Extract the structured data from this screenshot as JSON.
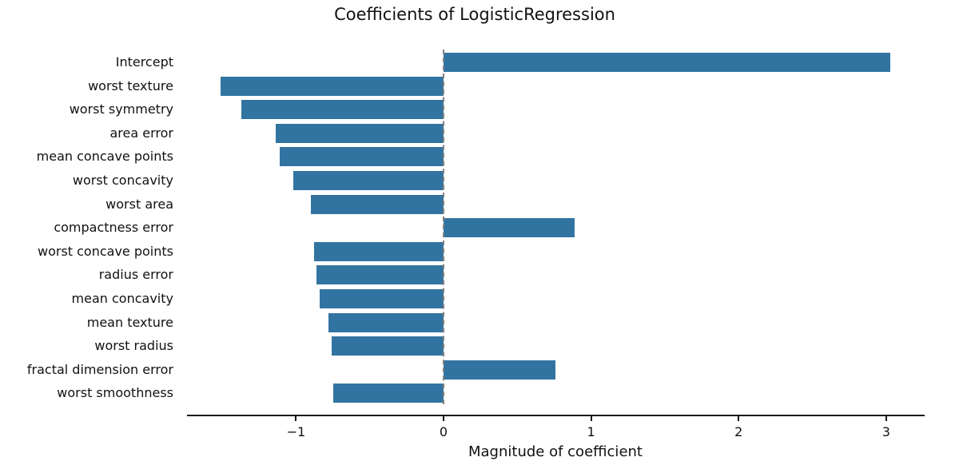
{
  "chart_data": {
    "type": "bar",
    "orientation": "horizontal",
    "title": "Coefficients of LogisticRegression",
    "xlabel": "Magnitude of coefficient",
    "ylabel": "",
    "xlim": [
      -1.74,
      3.26
    ],
    "xticks": [
      -1,
      0,
      1,
      2,
      3
    ],
    "xtick_labels": [
      "−1",
      "0",
      "1",
      "2",
      "3"
    ],
    "reference_line": {
      "x": 0,
      "style": "dashed",
      "color": "#808080"
    },
    "bar_color": "#3274a1",
    "grid": false,
    "legend": null,
    "categories": [
      "Intercept",
      "worst texture",
      "worst symmetry",
      "area error",
      "mean concave points",
      "worst concavity",
      "worst area",
      "compactness error",
      "worst concave points",
      "radius error",
      "mean concavity",
      "mean texture",
      "worst radius",
      "fractal dimension error",
      "worst smoothness"
    ],
    "values": [
      3.03,
      -1.51,
      -1.37,
      -1.14,
      -1.11,
      -1.02,
      -0.9,
      0.89,
      -0.88,
      -0.86,
      -0.84,
      -0.78,
      -0.76,
      0.76,
      -0.75
    ]
  }
}
